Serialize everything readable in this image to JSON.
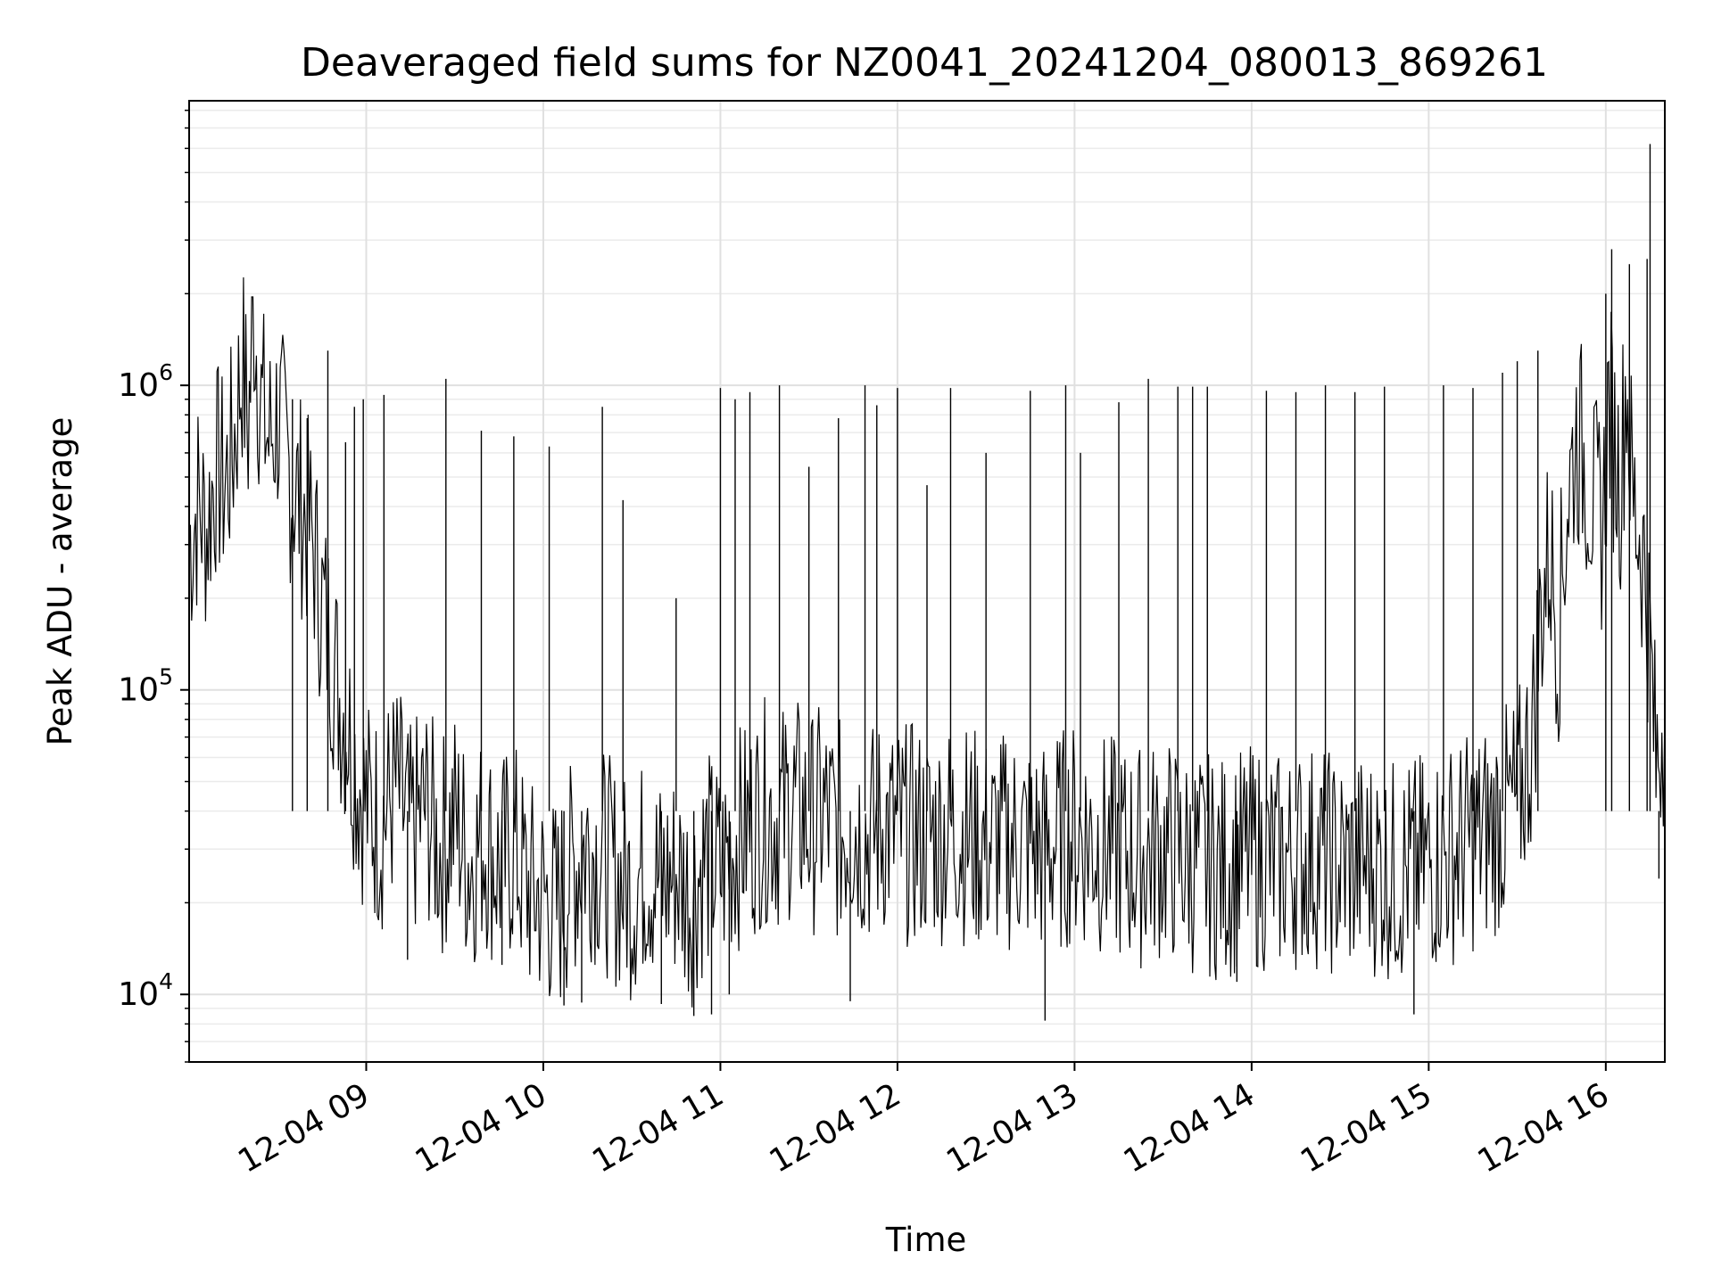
{
  "chart_data": {
    "type": "line",
    "title": "Deaveraged field sums for NZ0041_20241204_080013_869261",
    "xlabel": "Time",
    "ylabel": "Peak ADU - average",
    "yscale": "log",
    "ylim": [
      6000,
      8600000
    ],
    "xlim": [
      "2024-12-04 08:00",
      "2024-12-04 16:20"
    ],
    "grid": true,
    "x_ticks": [
      {
        "x": "2024-12-04 09:00",
        "label": "12-04 09"
      },
      {
        "x": "2024-12-04 10:00",
        "label": "12-04 10"
      },
      {
        "x": "2024-12-04 11:00",
        "label": "12-04 11"
      },
      {
        "x": "2024-12-04 12:00",
        "label": "12-04 12"
      },
      {
        "x": "2024-12-04 13:00",
        "label": "12-04 13"
      },
      {
        "x": "2024-12-04 14:00",
        "label": "12-04 14"
      },
      {
        "x": "2024-12-04 15:00",
        "label": "12-04 15"
      },
      {
        "x": "2024-12-04 16:00",
        "label": "12-04 16"
      }
    ],
    "y_ticks": [
      {
        "y": 10000,
        "base": "10",
        "exp": "4"
      },
      {
        "y": 100000,
        "base": "10",
        "exp": "5"
      },
      {
        "y": 1000000,
        "base": "10",
        "exp": "6"
      }
    ],
    "series": [
      {
        "color": "#000000",
        "points": [
          [
            "2024-12-04 08:00",
            300000
          ],
          [
            "2024-12-04 08:03",
            410000
          ],
          [
            "2024-12-04 08:06",
            340000
          ],
          [
            "2024-12-04 08:09",
            530000
          ],
          [
            "2024-12-04 08:12",
            470000
          ],
          [
            "2024-12-04 08:15",
            630000
          ],
          [
            "2024-12-04 08:18",
            1200000
          ],
          [
            "2024-12-04 08:20",
            720000
          ],
          [
            "2024-12-04 08:22",
            1800000
          ],
          [
            "2024-12-04 08:24",
            900000
          ],
          [
            "2024-12-04 08:27",
            650000
          ],
          [
            "2024-12-04 08:30",
            800000
          ],
          [
            "2024-12-04 08:33",
            560000
          ],
          [
            "2024-12-04 08:36",
            450000
          ],
          [
            "2024-12-04 08:39",
            380000
          ],
          [
            "2024-12-04 08:42",
            300000
          ],
          [
            "2024-12-04 08:45",
            190000
          ],
          [
            "2024-12-04 08:48",
            140000
          ],
          [
            "2024-12-04 08:51",
            95000
          ],
          [
            "2024-12-04 08:54",
            75000
          ],
          [
            "2024-12-04 08:57",
            52000
          ],
          [
            "2024-12-04 09:00",
            42000
          ],
          [
            "2024-12-04 09:05",
            36000
          ],
          [
            "2024-12-04 09:10",
            48000
          ],
          [
            "2024-12-04 09:15",
            33000
          ],
          [
            "2024-12-04 09:20",
            41000
          ],
          [
            "2024-12-04 09:25",
            30000
          ],
          [
            "2024-12-04 09:30",
            38000
          ],
          [
            "2024-12-04 09:35",
            27000
          ],
          [
            "2024-12-04 09:40",
            33000
          ],
          [
            "2024-12-04 09:45",
            26000
          ],
          [
            "2024-12-04 09:50",
            30000
          ],
          [
            "2024-12-04 09:55",
            22000
          ],
          [
            "2024-12-04 10:00",
            21000
          ],
          [
            "2024-12-04 10:05",
            19000
          ],
          [
            "2024-12-04 10:10",
            26000
          ],
          [
            "2024-12-04 10:15",
            31000
          ],
          [
            "2024-12-04 10:20",
            28000
          ],
          [
            "2024-12-04 10:25",
            24000
          ],
          [
            "2024-12-04 10:30",
            22000
          ],
          [
            "2024-12-04 10:35",
            27000
          ],
          [
            "2024-12-04 10:40",
            23000
          ],
          [
            "2024-12-04 10:45",
            25000
          ],
          [
            "2024-12-04 10:50",
            21000
          ],
          [
            "2024-12-04 10:55",
            28000
          ],
          [
            "2024-12-04 11:00",
            25000
          ],
          [
            "2024-12-04 11:05",
            32000
          ],
          [
            "2024-12-04 11:10",
            35000
          ],
          [
            "2024-12-04 11:15",
            40000
          ],
          [
            "2024-12-04 11:20",
            38000
          ],
          [
            "2024-12-04 11:25",
            42000
          ],
          [
            "2024-12-04 11:30",
            36000
          ],
          [
            "2024-12-04 11:35",
            39000
          ],
          [
            "2024-12-04 11:40",
            34000
          ],
          [
            "2024-12-04 11:45",
            37000
          ],
          [
            "2024-12-04 11:50",
            33000
          ],
          [
            "2024-12-04 11:55",
            36000
          ],
          [
            "2024-12-04 12:00",
            34000
          ],
          [
            "2024-12-04 12:10",
            33000
          ],
          [
            "2024-12-04 12:20",
            35000
          ],
          [
            "2024-12-04 12:30",
            31000
          ],
          [
            "2024-12-04 12:40",
            32000
          ],
          [
            "2024-12-04 12:50",
            30000
          ],
          [
            "2024-12-04 13:00",
            34000
          ],
          [
            "2024-12-04 13:10",
            31000
          ],
          [
            "2024-12-04 13:20",
            28000
          ],
          [
            "2024-12-04 13:30",
            30000
          ],
          [
            "2024-12-04 13:40",
            27000
          ],
          [
            "2024-12-04 13:50",
            26000
          ],
          [
            "2024-12-04 14:00",
            28000
          ],
          [
            "2024-12-04 14:10",
            27000
          ],
          [
            "2024-12-04 14:20",
            29000
          ],
          [
            "2024-12-04 14:30",
            26000
          ],
          [
            "2024-12-04 14:40",
            27000
          ],
          [
            "2024-12-04 14:50",
            25000
          ],
          [
            "2024-12-04 15:00",
            27000
          ],
          [
            "2024-12-04 15:10",
            30000
          ],
          [
            "2024-12-04 15:20",
            34000
          ],
          [
            "2024-12-04 15:30",
            42000
          ],
          [
            "2024-12-04 15:35",
            70000
          ],
          [
            "2024-12-04 15:38",
            180000
          ],
          [
            "2024-12-04 15:41",
            290000
          ],
          [
            "2024-12-04 15:44",
            150000
          ],
          [
            "2024-12-04 15:47",
            420000
          ],
          [
            "2024-12-04 15:50",
            680000
          ],
          [
            "2024-12-04 15:53",
            560000
          ],
          [
            "2024-12-04 15:56",
            400000
          ],
          [
            "2024-12-04 15:59",
            350000
          ],
          [
            "2024-12-04 16:01",
            900000
          ],
          [
            "2024-12-04 16:03",
            620000
          ],
          [
            "2024-12-04 16:05",
            480000
          ],
          [
            "2024-12-04 16:07",
            1100000
          ],
          [
            "2024-12-04 16:09",
            420000
          ],
          [
            "2024-12-04 16:11",
            350000
          ],
          [
            "2024-12-04 16:13",
            260000
          ],
          [
            "2024-12-04 16:15",
            140000
          ],
          [
            "2024-12-04 16:17",
            55000
          ],
          [
            "2024-12-04 16:19",
            80000
          ],
          [
            "2024-12-04 16:20",
            85000
          ]
        ],
        "spikes": [
          [
            "2024-12-04 08:35",
            900000
          ],
          [
            "2024-12-04 08:40",
            780000
          ],
          [
            "2024-12-04 08:47",
            1300000
          ],
          [
            "2024-12-04 08:53",
            650000
          ],
          [
            "2024-12-04 08:56",
            850000
          ],
          [
            "2024-12-04 08:59",
            900000
          ],
          [
            "2024-12-04 09:06",
            930000
          ],
          [
            "2024-12-04 09:14",
            13000
          ],
          [
            "2024-12-04 09:27",
            1050000
          ],
          [
            "2024-12-04 09:39",
            710000
          ],
          [
            "2024-12-04 09:46",
            12500
          ],
          [
            "2024-12-04 09:50",
            680000
          ],
          [
            "2024-12-04 10:02",
            630000
          ],
          [
            "2024-12-04 10:07",
            9200
          ],
          [
            "2024-12-04 10:13",
            9400
          ],
          [
            "2024-12-04 10:20",
            850000
          ],
          [
            "2024-12-04 10:27",
            420000
          ],
          [
            "2024-12-04 10:40",
            9300
          ],
          [
            "2024-12-04 10:45",
            200000
          ],
          [
            "2024-12-04 10:51",
            8500
          ],
          [
            "2024-12-04 10:57",
            8600
          ],
          [
            "2024-12-04 11:00",
            980000
          ],
          [
            "2024-12-04 11:03",
            10000
          ],
          [
            "2024-12-04 11:05",
            900000
          ],
          [
            "2024-12-04 11:10",
            950000
          ],
          [
            "2024-12-04 11:20",
            1000000
          ],
          [
            "2024-12-04 11:30",
            540000
          ],
          [
            "2024-12-04 11:40",
            780000
          ],
          [
            "2024-12-04 11:44",
            9500
          ],
          [
            "2024-12-04 11:49",
            1000000
          ],
          [
            "2024-12-04 11:53",
            860000
          ],
          [
            "2024-12-04 12:00",
            980000
          ],
          [
            "2024-12-04 12:10",
            470000
          ],
          [
            "2024-12-04 12:18",
            980000
          ],
          [
            "2024-12-04 12:30",
            600000
          ],
          [
            "2024-12-04 12:45",
            960000
          ],
          [
            "2024-12-04 12:50",
            8200
          ],
          [
            "2024-12-04 12:57",
            1000000
          ],
          [
            "2024-12-04 13:02",
            600000
          ],
          [
            "2024-12-04 13:15",
            880000
          ],
          [
            "2024-12-04 13:25",
            1050000
          ],
          [
            "2024-12-04 13:35",
            990000
          ],
          [
            "2024-12-04 13:40",
            990000
          ],
          [
            "2024-12-04 13:45",
            990000
          ],
          [
            "2024-12-04 13:55",
            11000
          ],
          [
            "2024-12-04 14:05",
            960000
          ],
          [
            "2024-12-04 14:15",
            950000
          ],
          [
            "2024-12-04 14:25",
            1000000
          ],
          [
            "2024-12-04 14:35",
            950000
          ],
          [
            "2024-12-04 14:45",
            990000
          ],
          [
            "2024-12-04 14:55",
            8600
          ],
          [
            "2024-12-04 15:05",
            1000000
          ],
          [
            "2024-12-04 15:15",
            980000
          ],
          [
            "2024-12-04 15:25",
            1100000
          ],
          [
            "2024-12-04 15:30",
            1200000
          ],
          [
            "2024-12-04 15:37",
            1300000
          ],
          [
            "2024-12-04 16:00",
            2000000
          ],
          [
            "2024-12-04 16:02",
            2800000
          ],
          [
            "2024-12-04 16:08",
            2500000
          ],
          [
            "2024-12-04 16:14",
            2600000
          ],
          [
            "2024-12-04 16:15",
            6200000
          ],
          [
            "2024-12-04 16:18",
            24000
          ]
        ]
      }
    ]
  }
}
